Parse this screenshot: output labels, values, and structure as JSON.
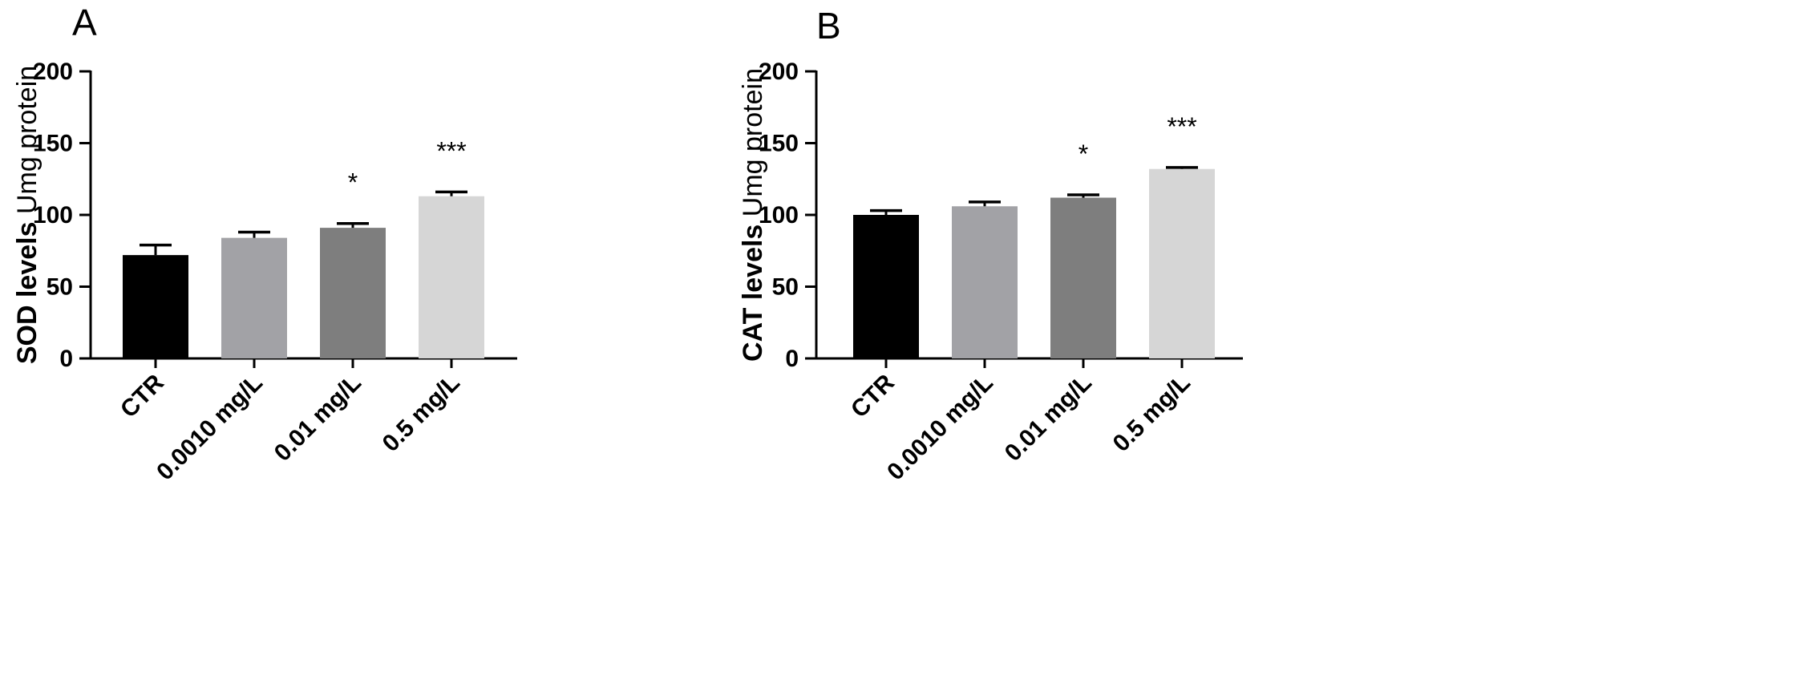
{
  "chart_data": [
    {
      "panel": "A",
      "type": "bar",
      "categories": [
        "CTR",
        "0.0010 mg/L",
        "0.01 mg/L",
        "0.5 mg/L"
      ],
      "values": [
        72,
        84,
        91,
        113
      ],
      "errors": [
        7,
        4,
        3,
        3
      ],
      "significance": [
        "",
        "",
        "*",
        "***"
      ],
      "bar_colors": [
        "#000000",
        "#a2a2a6",
        "#7e7e7e",
        "#d6d6d6"
      ],
      "ylabel_bold": "SOD levels",
      "ylabel_rest": " Umg protein",
      "ylim": [
        0,
        200
      ],
      "yticks": [
        0,
        50,
        100,
        150,
        200
      ],
      "xlabel": "",
      "grid": false,
      "legend": "none"
    },
    {
      "panel": "B",
      "type": "bar",
      "categories": [
        "CTR",
        "0.0010 mg/L",
        "0.01 mg/L",
        "0.5 mg/L"
      ],
      "values": [
        100,
        106,
        112,
        132
      ],
      "errors": [
        3,
        3,
        2,
        1
      ],
      "significance": [
        "",
        "",
        "*",
        "***"
      ],
      "bar_colors": [
        "#000000",
        "#a2a2a6",
        "#7e7e7e",
        "#d6d6d6"
      ],
      "ylabel_bold": "CAT levels",
      "ylabel_rest": " Umg protein",
      "ylim": [
        0,
        200
      ],
      "yticks": [
        0,
        50,
        100,
        150,
        200
      ],
      "xlabel": "",
      "grid": false,
      "legend": "none"
    }
  ]
}
